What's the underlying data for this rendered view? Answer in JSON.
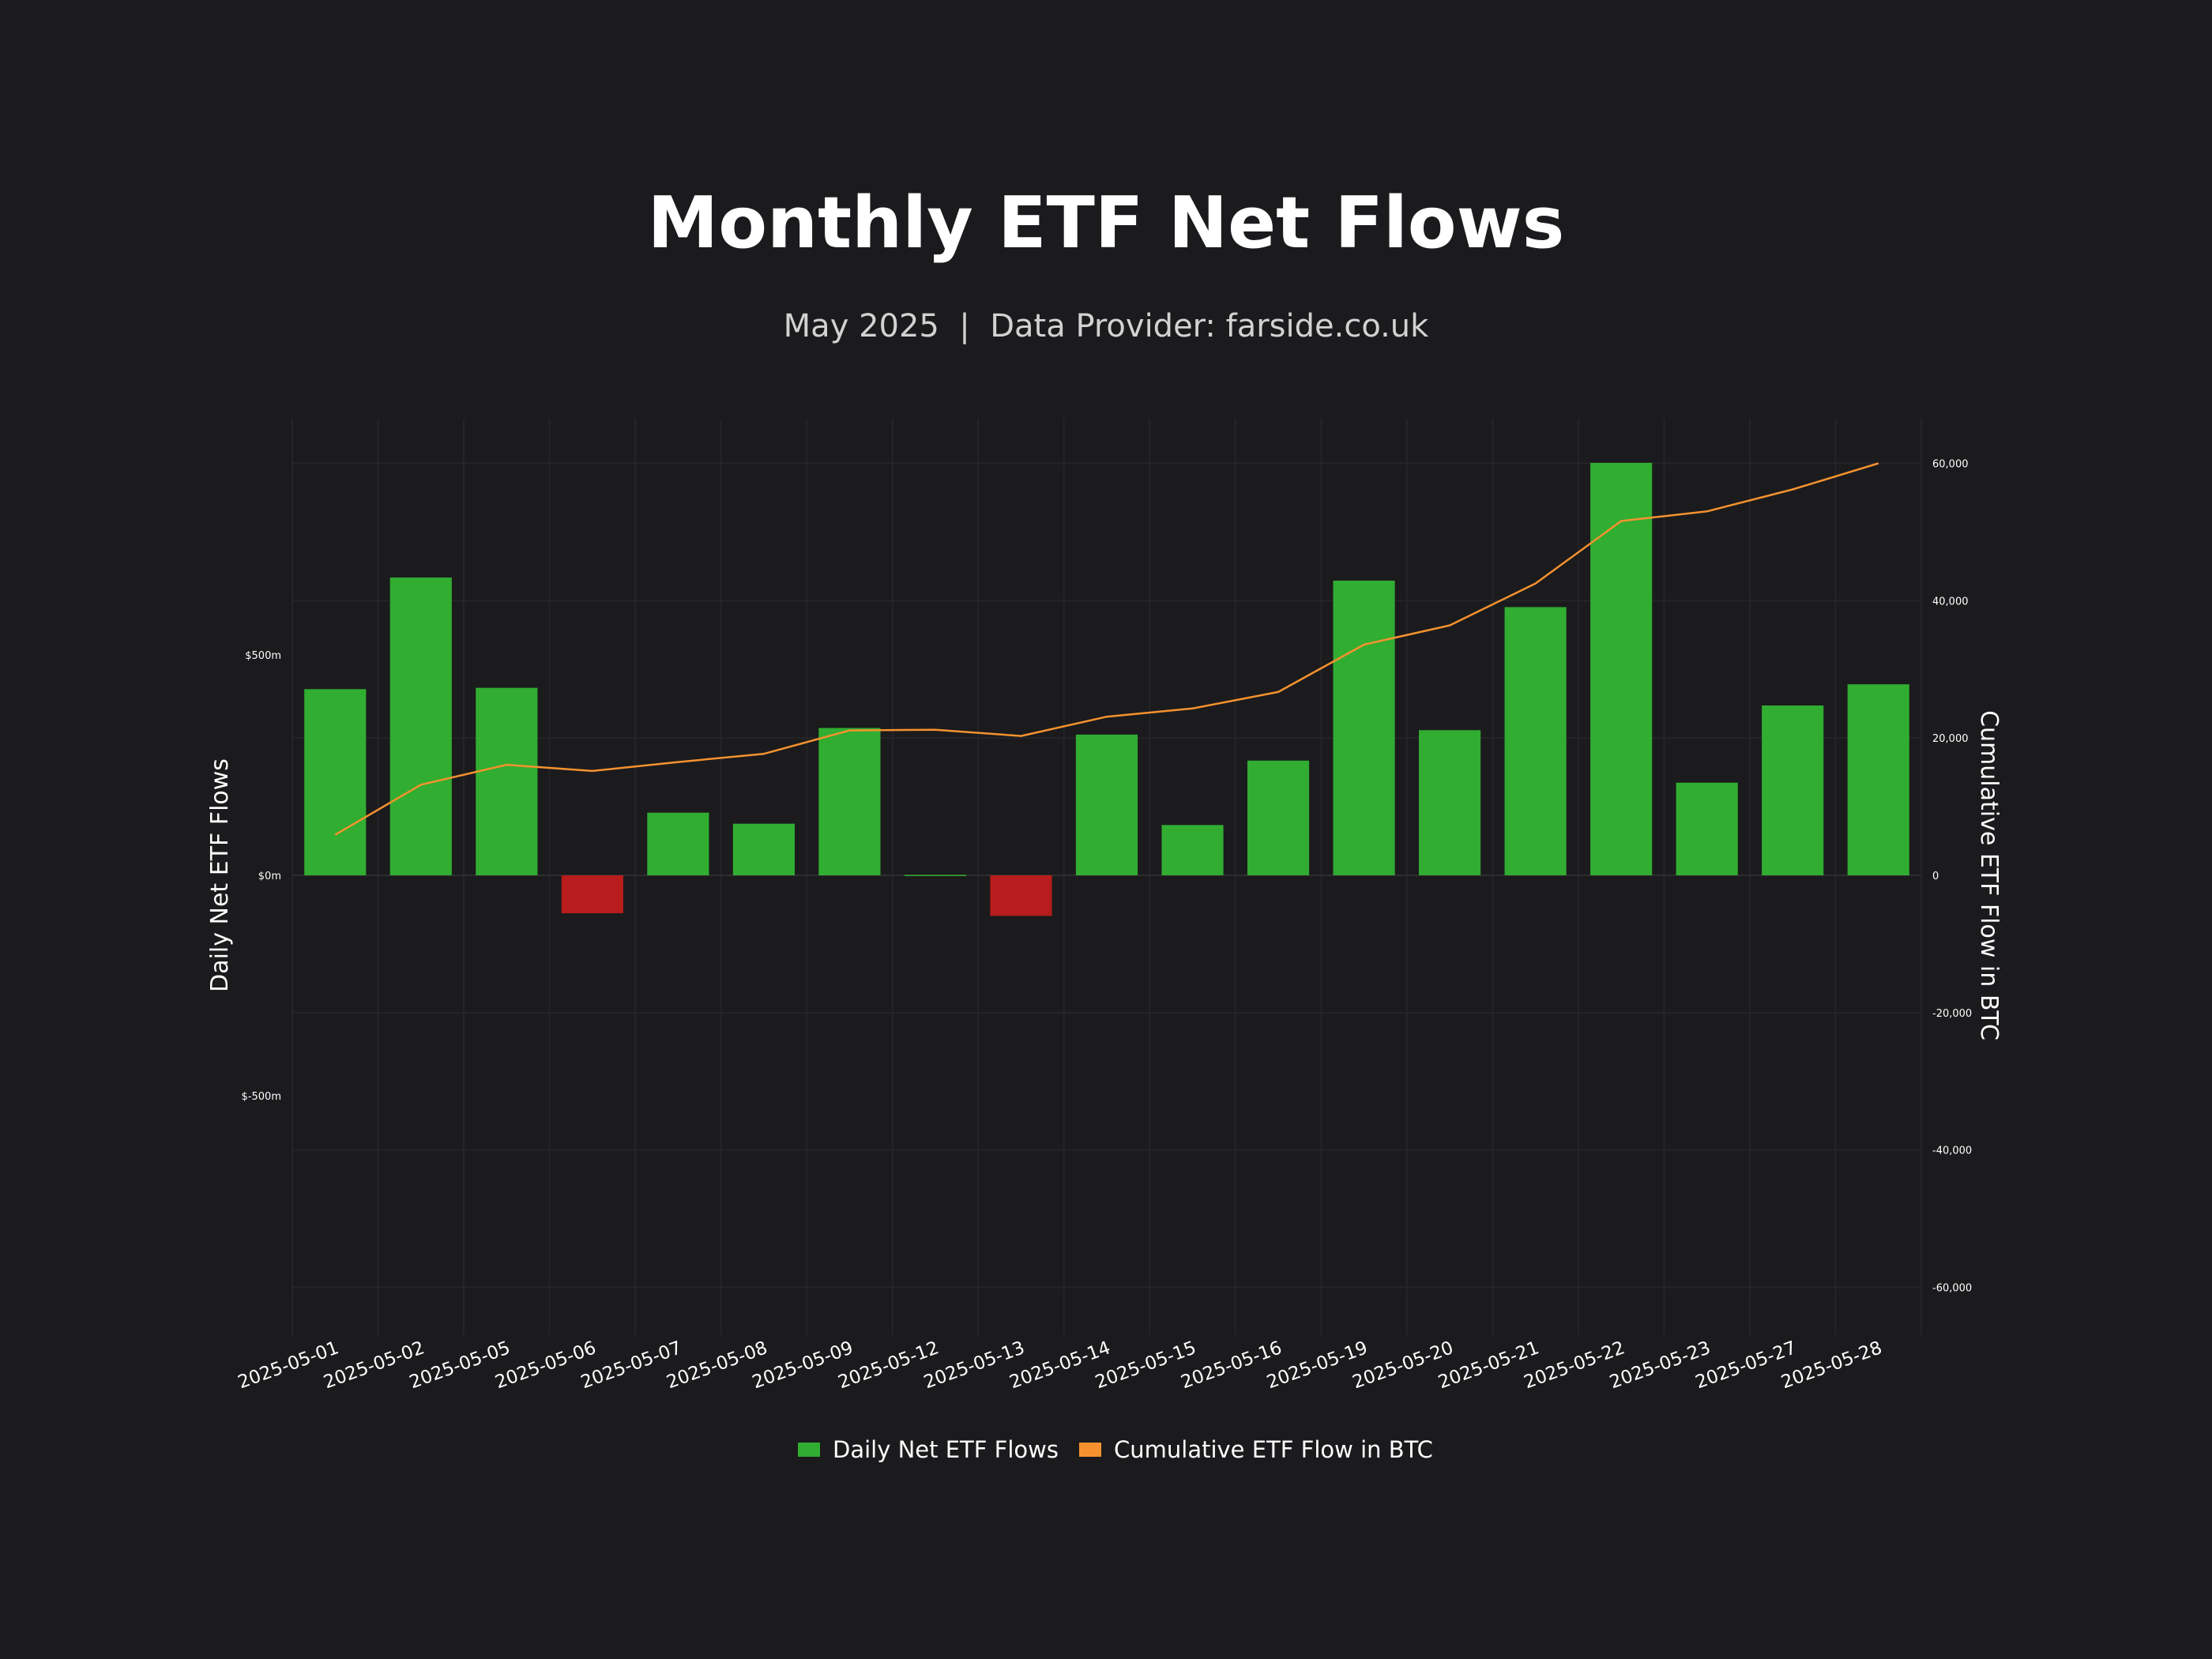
{
  "colors": {
    "background": "#1b1b1d",
    "positive_bar": "#31ad31",
    "negative_bar": "#b81c1c",
    "cumulative_line": "#f5922f",
    "text": "#ffffff",
    "subtitle": "#d2d2d2"
  },
  "chart_data": {
    "type": "bar",
    "title": "Monthly ETF Net Flows",
    "subtitle": "May 2025  |  Data Provider: farside.co.uk",
    "xlabel": "",
    "ylabel_left": "Daily Net ETF Flows",
    "ylabel_right": "Cumulative ETF Flow in BTC",
    "categories": [
      "2025-05-01",
      "2025-05-02",
      "2025-05-05",
      "2025-05-06",
      "2025-05-07",
      "2025-05-08",
      "2025-05-09",
      "2025-05-12",
      "2025-05-13",
      "2025-05-14",
      "2025-05-15",
      "2025-05-16",
      "2025-05-19",
      "2025-05-20",
      "2025-05-21",
      "2025-05-22",
      "2025-05-23",
      "2025-05-27",
      "2025-05-28"
    ],
    "ylim_left": [
      -1035,
      1035
    ],
    "yticks_left": [
      {
        "value": 500,
        "label": "$500m"
      },
      {
        "value": 0,
        "label": "$0m"
      },
      {
        "value": -500,
        "label": "$-500m"
      }
    ],
    "ylim_right": [
      -66500,
      66500
    ],
    "yticks_right": [
      {
        "value": 60000,
        "label": "60,000"
      },
      {
        "value": 40000,
        "label": "40,000"
      },
      {
        "value": 20000,
        "label": "20,000"
      },
      {
        "value": 0,
        "label": "0"
      },
      {
        "value": -20000,
        "label": "-20,000"
      },
      {
        "value": -40000,
        "label": "-40,000"
      },
      {
        "value": -60000,
        "label": "-60,000"
      }
    ],
    "grid": true,
    "legend_position": "bottom-center",
    "series": [
      {
        "name": "Daily Net ETF Flows",
        "type": "bar",
        "axis": "left",
        "values": [
          422,
          675,
          425,
          -86,
          142,
          117,
          334,
          1,
          -92,
          319,
          114,
          260,
          668,
          329,
          608,
          935,
          210,
          385,
          433
        ]
      },
      {
        "name": "Cumulative ETF Flow in BTC",
        "type": "line",
        "axis": "right",
        "values": [
          5900,
          13200,
          16100,
          15200,
          16500,
          17700,
          21100,
          21200,
          20300,
          23100,
          24300,
          26700,
          33600,
          36400,
          42500,
          51600,
          53000,
          56200,
          60000
        ]
      }
    ]
  }
}
